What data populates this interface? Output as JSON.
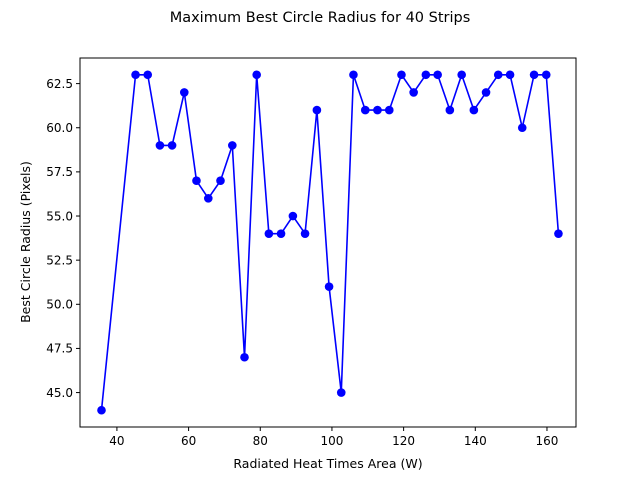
{
  "chart_data": {
    "type": "line",
    "title": "Maximum Best Circle Radius for 40 Strips",
    "xlabel": "Radiated Heat Times Area (W)",
    "ylabel": "Best Circle Radius (Pixels)",
    "xlim": [
      29.7,
      168.1
    ],
    "ylim": [
      43.05,
      63.95
    ],
    "xticks": [
      40,
      60,
      80,
      100,
      120,
      140,
      160
    ],
    "xtick_labels": [
      "40",
      "60",
      "80",
      "100",
      "120",
      "140",
      "160"
    ],
    "yticks": [
      45.0,
      47.5,
      50.0,
      52.5,
      55.0,
      57.5,
      60.0,
      62.5
    ],
    "ytick_labels": [
      "45.0",
      "47.5",
      "50.0",
      "52.5",
      "55.0",
      "57.5",
      "60.0",
      "62.5"
    ],
    "grid": false,
    "series": [
      {
        "color": "#0000ff",
        "marker": "circle",
        "x": [
          35.7,
          45.2,
          48.6,
          52.0,
          55.4,
          58.8,
          62.2,
          65.5,
          68.9,
          72.2,
          75.6,
          79.0,
          82.4,
          85.8,
          89.1,
          92.5,
          95.8,
          99.2,
          102.6,
          106.0,
          109.3,
          112.7,
          116.0,
          119.4,
          122.8,
          126.2,
          129.5,
          132.9,
          136.2,
          139.6,
          143.0,
          146.4,
          149.7,
          153.1,
          156.4,
          159.8,
          163.2
        ],
        "y": [
          44,
          63,
          63,
          59,
          59,
          62,
          57,
          56,
          57,
          59,
          47,
          63,
          54,
          54,
          55,
          54,
          61,
          51,
          45,
          63,
          61,
          61,
          61,
          63,
          62,
          63,
          63,
          61,
          63,
          61,
          62,
          63,
          63,
          60,
          63,
          63,
          54
        ]
      }
    ]
  }
}
